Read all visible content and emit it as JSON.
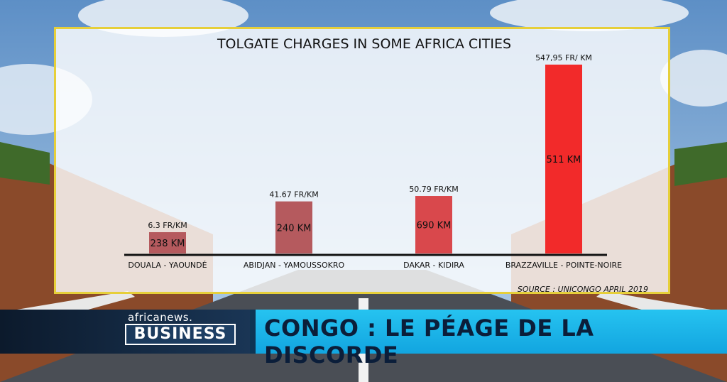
{
  "colors": {
    "bar_dark": "#b55a5e",
    "bar_mid": "#d9484c",
    "bar_bright": "#f22a2a",
    "frame": "#e6cf3a",
    "lower_cyan": "#1ab4e8",
    "lower_dark": "#10243c"
  },
  "chart_data": {
    "type": "bar",
    "title": "TOLGATE CHARGES IN SOME AFRICA CITIES",
    "categories": [
      "DOUALA - YAOUNDÉ",
      "ABIDJAN - YAMOUSSOKRO",
      "DAKAR - KIDIRA",
      "BRAZZAVILLE - POINTE-NOIRE"
    ],
    "values": [
      6.3,
      41.67,
      50.79,
      547.95
    ],
    "value_labels": [
      "6.3 FR/KM",
      "41.67 FR/KM",
      "50.79 FR/KM",
      "547,95 FR/ KM"
    ],
    "distance_labels": [
      "238 KM",
      "240 KM",
      "690 KM",
      "511 KM"
    ],
    "source": "SOURCE : UNICONGO APRIL 2019",
    "xlabel": "",
    "ylabel": "",
    "grid": false
  },
  "lower_third": {
    "brand": "africanews.",
    "section": "BUSINESS",
    "headline": "CONGO : LE PÉAGE DE LA DISCORDE"
  }
}
